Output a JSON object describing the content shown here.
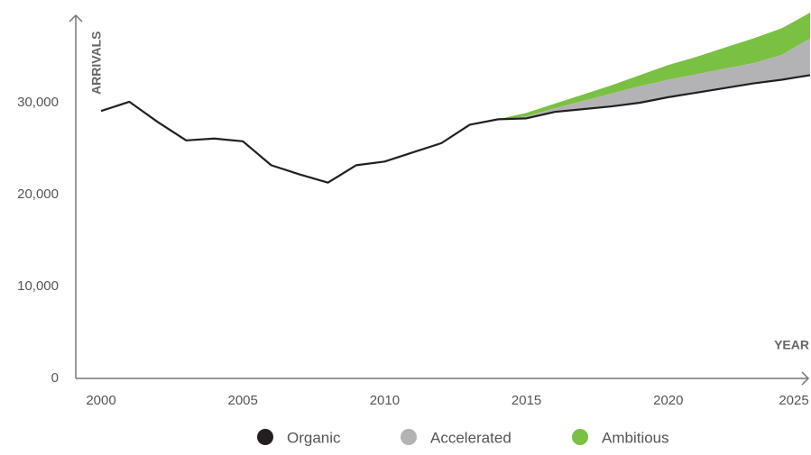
{
  "chart_data": {
    "type": "line",
    "y_label": "ARRIVALS",
    "x_label": "YEAR",
    "x": [
      2000,
      2001,
      2002,
      2003,
      2004,
      2005,
      2006,
      2007,
      2008,
      2009,
      2010,
      2011,
      2012,
      2013,
      2014,
      2015,
      2016,
      2017,
      2018,
      2019,
      2020,
      2021,
      2022,
      2023,
      2024,
      2025
    ],
    "series": [
      {
        "name": "Organic",
        "color": "#231f20",
        "values": [
          29100,
          30100,
          27900,
          25900,
          26100,
          25800,
          23200,
          22200,
          21300,
          23200,
          23600,
          24600,
          25600,
          27600,
          28200,
          28300,
          29000,
          29300,
          29600,
          30000,
          30600,
          31100,
          31600,
          32100,
          32500,
          33000
        ]
      },
      {
        "name": "Accelerated",
        "color": "#b3b3b5",
        "values": [
          null,
          null,
          null,
          null,
          null,
          null,
          null,
          null,
          null,
          null,
          null,
          null,
          null,
          null,
          28200,
          28500,
          29400,
          30200,
          31000,
          31800,
          32500,
          33100,
          33700,
          34300,
          35200,
          37000
        ]
      },
      {
        "name": "Ambitious",
        "color": "#7ac143",
        "values": [
          null,
          null,
          null,
          null,
          null,
          null,
          null,
          null,
          null,
          null,
          null,
          null,
          null,
          null,
          28200,
          28900,
          29900,
          30900,
          31900,
          33000,
          34100,
          35000,
          36000,
          37000,
          38100,
          39800
        ]
      }
    ],
    "xlim": [
      2000,
      2025
    ],
    "xticks": [
      2000,
      2005,
      2010,
      2015,
      2020,
      2025
    ],
    "ylim": [
      0,
      40000
    ],
    "yticks": [
      0,
      {
        "value": 10000,
        "label": "10,000"
      },
      {
        "value": 20000,
        "label": "20,000"
      },
      {
        "value": 30000,
        "label": "30,000"
      }
    ]
  }
}
